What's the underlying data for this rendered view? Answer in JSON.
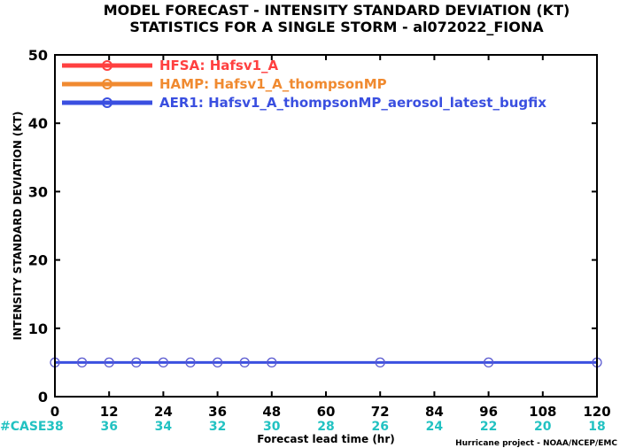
{
  "chart_data": {
    "type": "line",
    "title": "MODEL FORECAST - INTENSITY STANDARD DEVIATION (KT)",
    "subtitle": "STATISTICS FOR A SINGLE STORM - al072022_FIONA",
    "xlabel": "Forecast lead time (hr)",
    "ylabel": "INTENSITY STANDARD DEVIATION (KT)",
    "xlim": [
      0,
      120
    ],
    "ylim": [
      0,
      50
    ],
    "xticks": [
      0,
      12,
      24,
      36,
      48,
      60,
      72,
      84,
      96,
      108,
      120
    ],
    "yticks": [
      0,
      10,
      20,
      30,
      40,
      50
    ],
    "legend_position": "top-left",
    "series": [
      {
        "name": "HFSA: Hafsv1_A",
        "color": "#ff4040",
        "x": [],
        "values": []
      },
      {
        "name": "HAMP: Hafsv1_A_thompsonMP",
        "color": "#f08a30",
        "x": [],
        "values": []
      },
      {
        "name": "AER1: Hafsv1_A_thompsonMP_aerosol_latest_bugfix",
        "color": "#3a4fe0",
        "x": [
          0,
          6,
          12,
          18,
          24,
          30,
          36,
          42,
          48,
          72,
          96,
          120
        ],
        "values": [
          5,
          5,
          5,
          5,
          5,
          5,
          5,
          5,
          5,
          5,
          5,
          5
        ]
      }
    ],
    "case_counts": {
      "label": "#CASE",
      "color": "#22c2c2",
      "x": [
        0,
        12,
        24,
        36,
        48,
        60,
        72,
        84,
        96,
        108,
        120
      ],
      "values": [
        38,
        36,
        34,
        32,
        30,
        28,
        26,
        24,
        22,
        20,
        18
      ]
    }
  },
  "footer": "Hurricane project - NOAA/NCEP/EMC"
}
